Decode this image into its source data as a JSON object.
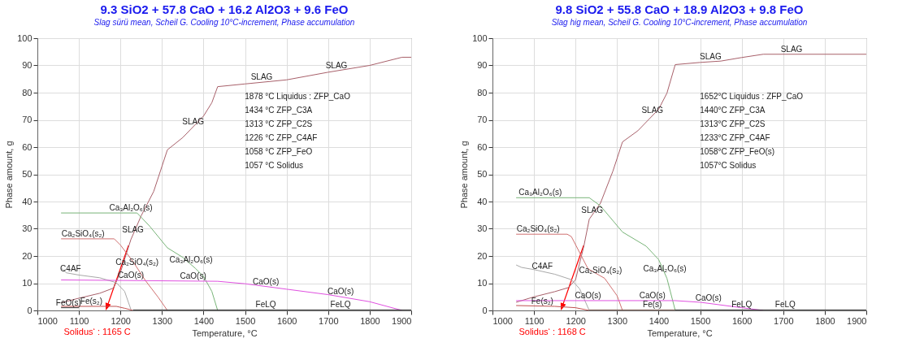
{
  "chart_data": [
    {
      "type": "line",
      "title": "9.3 SiO2 +  57.8 CaO +  16.2 Al2O3 +  9.6 FeO",
      "subtitle": "Slag sürü mean, Scheil G. Cooling 10°C-increment, Phase accumulation",
      "xlabel": "Temperature, °C",
      "ylabel": "Phase amount, g",
      "xlim": [
        1000,
        1900
      ],
      "ylim": [
        0,
        100
      ],
      "xticks": [
        1000,
        1100,
        1200,
        1300,
        1400,
        1500,
        1600,
        1700,
        1800,
        1900
      ],
      "yticks": [
        0,
        10,
        20,
        30,
        40,
        50,
        60,
        70,
        80,
        90,
        100
      ],
      "grid": true,
      "series": [
        {
          "color": "#a8606a",
          "x": [
            1057,
            1100,
            1150,
            1183,
            1200,
            1225,
            1250,
            1280,
            1313,
            1350,
            1400,
            1420,
            1434,
            1500,
            1600,
            1700,
            1800,
            1878,
            1900
          ],
          "values": [
            2.8,
            4.5,
            6.3,
            8.2,
            14,
            26,
            34.8,
            43.7,
            59,
            63.5,
            71.4,
            76.3,
            82.2,
            83.2,
            84.7,
            87.5,
            90,
            93,
            93
          ]
        },
        {
          "color": "#78b478",
          "x": [
            1057,
            1240,
            1270,
            1313,
            1350,
            1380,
            1400,
            1420,
            1434
          ],
          "values": [
            35.8,
            35.8,
            31,
            23,
            19.5,
            15.5,
            12.5,
            7,
            0
          ]
        },
        {
          "color": "#d07070",
          "x": [
            1057,
            1185,
            1200,
            1230,
            1260,
            1290,
            1313
          ],
          "values": [
            26.3,
            26.3,
            24,
            18,
            11,
            5,
            0
          ]
        },
        {
          "color": "#a8a8a8",
          "x": [
            1057,
            1070,
            1100,
            1150,
            1190,
            1210,
            1226
          ],
          "values": [
            15.6,
            13.8,
            13,
            12,
            10.2,
            7,
            0
          ]
        },
        {
          "color": "#e050e0",
          "x": [
            1057,
            1434,
            1500,
            1600,
            1700,
            1800,
            1878
          ],
          "values": [
            11.2,
            10.7,
            9.8,
            7.8,
            5.8,
            3.2,
            0
          ]
        },
        {
          "color": "#c05050",
          "x": [
            1057,
            1190,
            1210,
            1230
          ],
          "values": [
            1.5,
            1.5,
            0.8,
            0
          ]
        },
        {
          "color": "#333333",
          "x": [
            1057,
            1100
          ],
          "values": [
            1,
            1
          ]
        },
        {
          "color": "#333333",
          "x": [
            1230,
            1900
          ],
          "values": [
            0.2,
            0.2
          ]
        }
      ],
      "annotations": [
        "1878 °C Liquidus : ZFP_CaO",
        "1434 °C ZFP_C3A",
        "1313 °C ZFP_C2S",
        "1226 °C ZFP_C4AF",
        "1058 °C ZFP_FeO",
        "1057 °C Solidus",
        {
          "text": "SLAG",
          "x": 1540,
          "y": 83.8
        },
        {
          "text": "SLAG",
          "x": 1720,
          "y": 88
        },
        {
          "text": "SLAG",
          "x": 1375,
          "y": 67.5
        },
        {
          "text": "SLAG",
          "x": 1230,
          "y": 27.8
        },
        {
          "text": "Ca₃Al₂O₆(s)",
          "x": 1225,
          "y": 35.8
        },
        {
          "text": "Ca₃Al₂O₆(s)",
          "x": 1370,
          "y": 16.8
        },
        {
          "text": "Ca₂SiO₄(s₂)",
          "x": 1110,
          "y": 26.3
        },
        {
          "text": "Ca₂SiO₄(s₂)",
          "x": 1240,
          "y": 15.7
        },
        {
          "text": "C4AF",
          "x": 1080,
          "y": 13.5
        },
        {
          "text": "CaO(s)",
          "x": 1225,
          "y": 11
        },
        {
          "text": "CaO(s)",
          "x": 1375,
          "y": 10.8
        },
        {
          "text": "CaO(s)",
          "x": 1550,
          "y": 8.8
        },
        {
          "text": "CaO(s)",
          "x": 1730,
          "y": 5
        },
        {
          "text": "FeO(s)",
          "x": 1075,
          "y": 1
        },
        {
          "text": "Fe(s₂)",
          "x": 1130,
          "y": 1.5
        },
        {
          "text": "FeLQ",
          "x": 1550,
          "y": 0.2
        },
        {
          "text": "FeLQ",
          "x": 1730,
          "y": 0.2
        },
        "Solidus‘ : 1165 C"
      ]
    },
    {
      "type": "line",
      "title": "9.8 SiO2 +  55.8 CaO +  18.9 Al2O3 +  9.8 FeO",
      "subtitle": "Slag hig mean, Scheil G. Cooling 10°C-increment, Phase accumulation",
      "xlabel": "Temperature, °C",
      "ylabel": "Phase amount, g",
      "xlim": [
        1000,
        1900
      ],
      "ylim": [
        0,
        100
      ],
      "xticks": [
        1000,
        1100,
        1200,
        1300,
        1400,
        1500,
        1600,
        1700,
        1800,
        1900
      ],
      "yticks": [
        0,
        10,
        20,
        30,
        40,
        50,
        60,
        70,
        80,
        90,
        100
      ],
      "grid": true,
      "series": [
        {
          "color": "#a8606a",
          "x": [
            1057,
            1100,
            1150,
            1183,
            1200,
            1220,
            1233,
            1260,
            1290,
            1313,
            1350,
            1400,
            1420,
            1440,
            1500,
            1550,
            1600,
            1652,
            1900
          ],
          "values": [
            3,
            5,
            6.9,
            8.4,
            11.3,
            23.6,
            33.5,
            39.4,
            51.2,
            61.9,
            66,
            73.9,
            79.8,
            90.3,
            91.1,
            91.6,
            92.9,
            94.1,
            94.1
          ]
        },
        {
          "color": "#78b478",
          "x": [
            1057,
            1233,
            1260,
            1313,
            1370,
            1400,
            1420,
            1440
          ],
          "values": [
            41.4,
            41.4,
            38.4,
            28.8,
            23.6,
            18.7,
            11.8,
            0
          ]
        },
        {
          "color": "#d07070",
          "x": [
            1057,
            1180,
            1190,
            1230,
            1270,
            1300,
            1313
          ],
          "values": [
            28,
            28,
            27.1,
            15.3,
            11.8,
            5.4,
            0
          ]
        },
        {
          "color": "#a8a8a8",
          "x": [
            1057,
            1070,
            1100,
            1150,
            1190,
            1210,
            1233
          ],
          "values": [
            16.7,
            15.8,
            15,
            13.3,
            11.3,
            7.9,
            0
          ]
        },
        {
          "color": "#e050e0",
          "x": [
            1057,
            1440,
            1500,
            1600,
            1652
          ],
          "values": [
            3.6,
            3.6,
            3,
            1,
            0
          ]
        },
        {
          "color": "#c05050",
          "x": [
            1057,
            1150,
            1200,
            1233
          ],
          "values": [
            1.8,
            1.5,
            1,
            0
          ]
        },
        {
          "color": "#7a5a50",
          "x": [
            1233,
            1440
          ],
          "values": [
            0.2,
            0.2
          ]
        },
        {
          "color": "#333333",
          "x": [
            1440,
            1900
          ],
          "values": [
            0.2,
            0.2
          ]
        }
      ],
      "annotations": [
        "1652°C Liquidus :  ZFP_CaO",
        "1440°C ZFP_C3A",
        "1313°C ZFP_C2S",
        "1233°C ZFP_C4AF",
        "1058°C ZFP_FeO(s)",
        "1057°C Solidus",
        {
          "text": "SLAG",
          "x": 1525,
          "y": 91.4
        },
        {
          "text": "SLAG",
          "x": 1720,
          "y": 94.1
        },
        {
          "text": "SLAG",
          "x": 1385,
          "y": 71.5
        },
        {
          "text": "SLAG",
          "x": 1240,
          "y": 35
        },
        {
          "text": "Ca₃Al₂O₆(s)",
          "x": 1115,
          "y": 41.4
        },
        {
          "text": "Ca₃Al₂O₆(s)",
          "x": 1415,
          "y": 13.5
        },
        {
          "text": "Ca₂SiO₄(s₂)",
          "x": 1110,
          "y": 28
        },
        {
          "text": "Ca₂SiO₄(s₂)",
          "x": 1260,
          "y": 12.7
        },
        {
          "text": "C4AF",
          "x": 1120,
          "y": 14.3
        },
        {
          "text": "CaO(s)",
          "x": 1230,
          "y": 3.6
        },
        {
          "text": "CaO(s)",
          "x": 1385,
          "y": 3.6
        },
        {
          "text": "CaO(s)",
          "x": 1520,
          "y": 2.6
        },
        {
          "text": "Fe(s₂)",
          "x": 1120,
          "y": 1.6
        },
        {
          "text": "Fe(s)",
          "x": 1385,
          "y": 0.2
        },
        {
          "text": "FeLQ",
          "x": 1600,
          "y": 0.2
        },
        {
          "text": "FeLQ",
          "x": 1705,
          "y": 0.2
        },
        "Solidus‘ : 1168 C"
      ]
    }
  ]
}
